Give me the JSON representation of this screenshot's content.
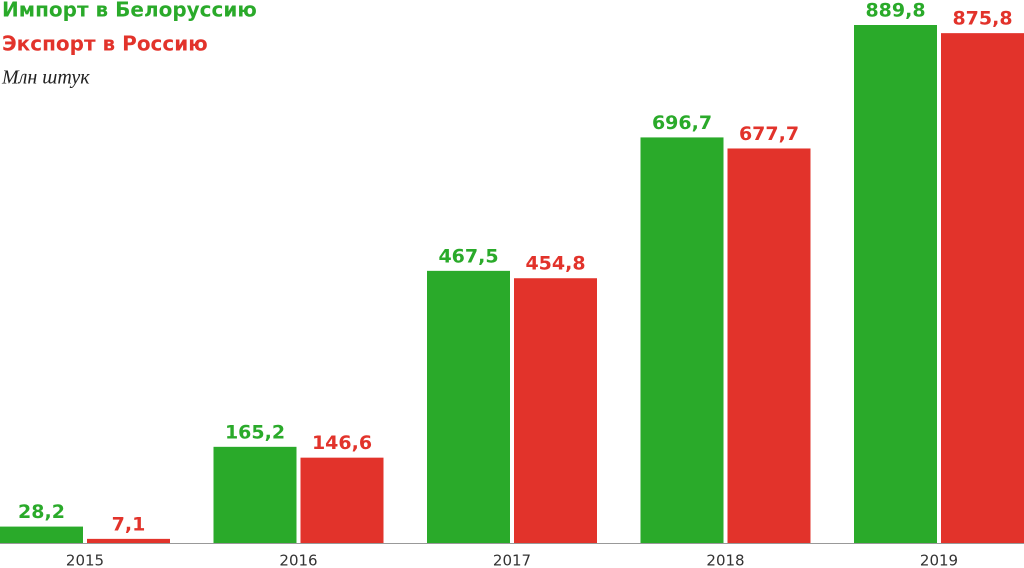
{
  "chart_data": {
    "type": "bar",
    "subtitle": "Млн штук",
    "categories": [
      "2015",
      "2016",
      "2017",
      "2018",
      "2019"
    ],
    "series": [
      {
        "name": "Импорт в Белоруссию",
        "color": "#2aaa2a",
        "values": [
          28.2,
          165.2,
          467.5,
          696.7,
          889.8
        ],
        "value_labels": [
          "28,2",
          "165,2",
          "467,5",
          "696,7",
          "889,8"
        ]
      },
      {
        "name": "Экспорт в Россию",
        "color": "#e2332b",
        "values": [
          7.1,
          146.6,
          454.8,
          677.7,
          875.8
        ],
        "value_labels": [
          "7,1",
          "146,6",
          "454,8",
          "677,7",
          "875,8"
        ]
      }
    ]
  }
}
